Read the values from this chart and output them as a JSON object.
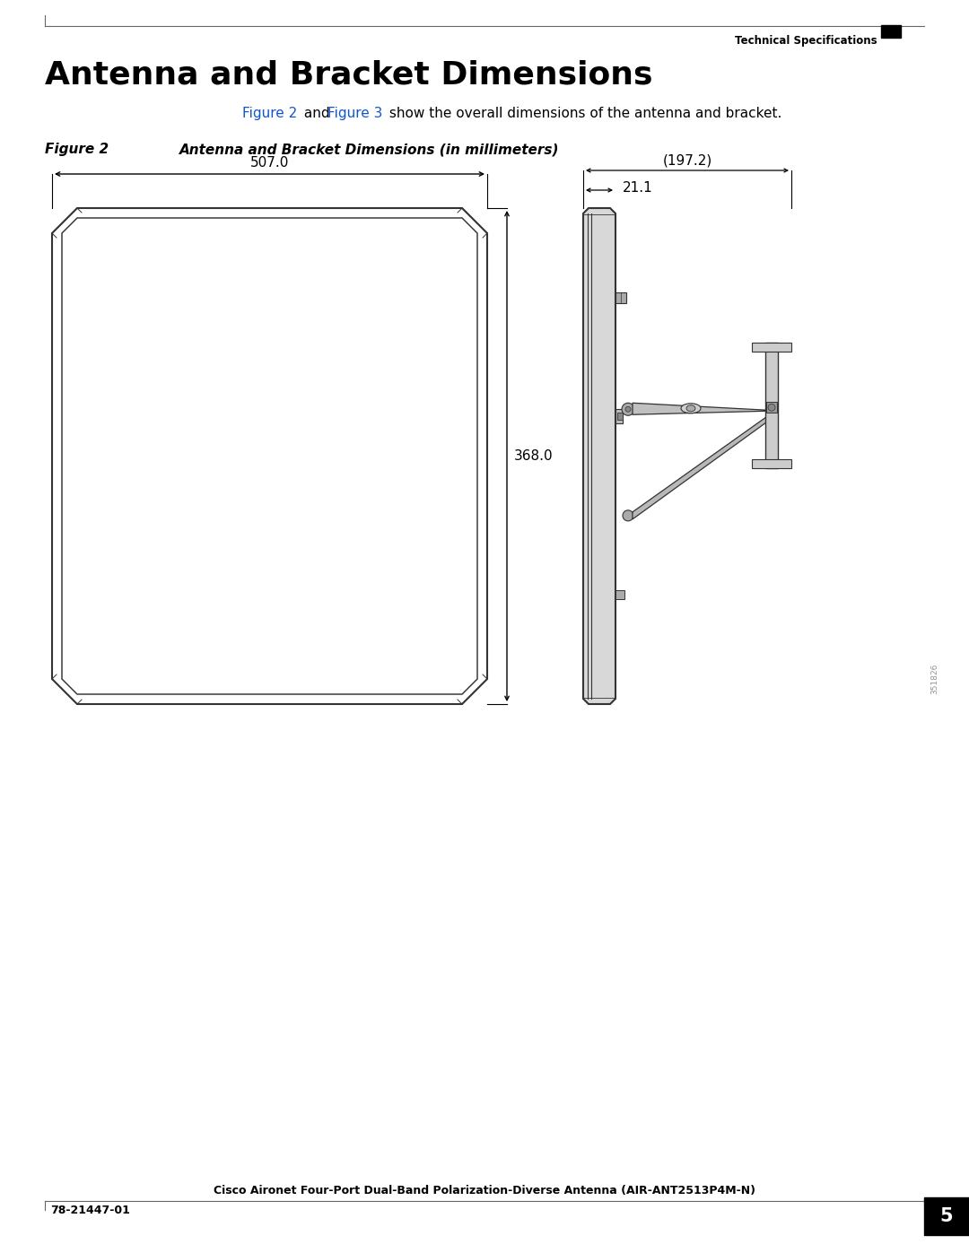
{
  "title": "Antenna and Bracket Dimensions",
  "header_right": "Technical Specifications",
  "subtitle_pre": "Figure 2 and Figure 3 show the overall dimensions of the antenna and bracket.",
  "figure_label": "Figure 2",
  "figure_caption": "Antenna and Bracket Dimensions (in millimeters)",
  "dim_width": "507.0",
  "dim_height": "368.0",
  "dim_depth_total": "197.2",
  "dim_depth_panel": "21.1",
  "footer_center": "Cisco Aironet Four-Port Dual-Band Polarization-Diverse Antenna (AIR-ANT2513P4M-N)",
  "footer_left": "78-21447-01",
  "footer_page": "5",
  "figure2_link_color": "#1155CC",
  "figure3_link_color": "#1155CC",
  "bg_color": "#ffffff",
  "text_color": "#000000",
  "line_color": "#333333",
  "watermark": "351826"
}
